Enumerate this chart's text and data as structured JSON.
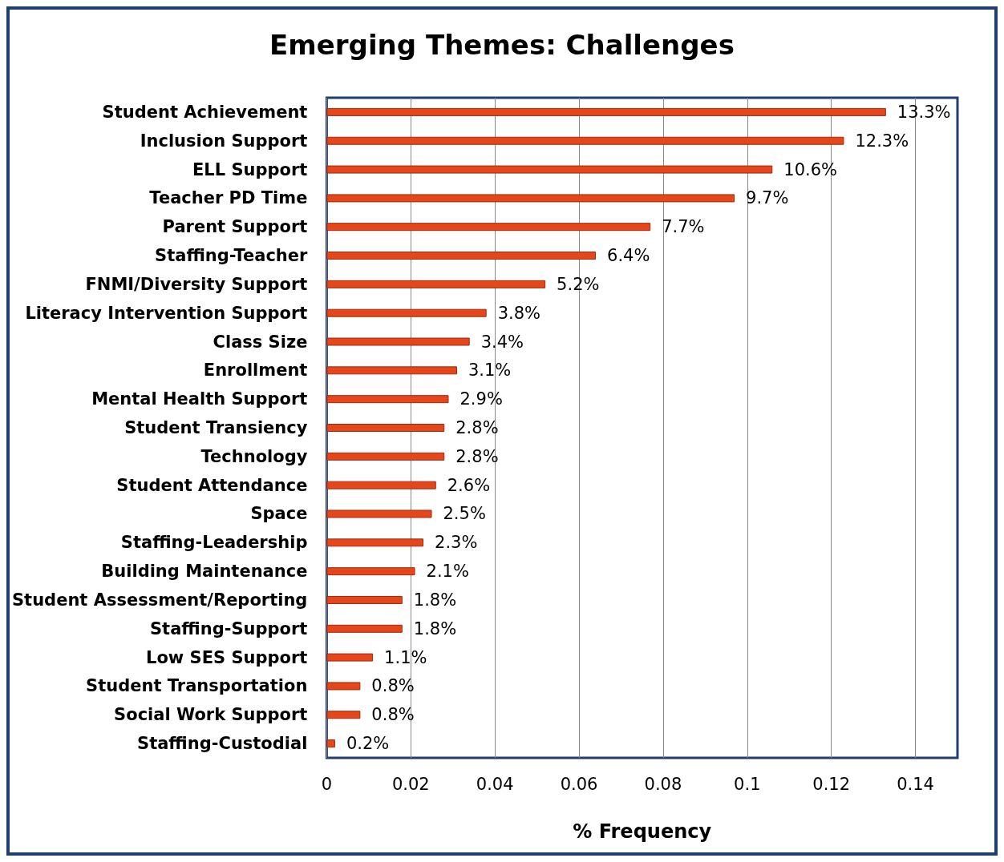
{
  "chart_data": {
    "type": "bar",
    "orientation": "horizontal",
    "title": "Emerging Themes: Challenges",
    "xlabel": "% Frequency",
    "categories": [
      "Student Achievement",
      "Inclusion Support",
      "ELL Support",
      "Teacher PD Time",
      "Parent Support",
      "Staffing-Teacher",
      "FNMI/Diversity Support",
      "Literacy Intervention Support",
      "Class Size",
      "Enrollment",
      "Mental Health Support",
      "Student Transiency",
      "Technology",
      "Student Attendance",
      "Space",
      "Staffing-Leadership",
      "Building Maintenance",
      "Student Assessment/Reporting",
      "Staffing-Support",
      "Low SES Support",
      "Student Transportation",
      "Social Work Support",
      "Staffing-Custodial"
    ],
    "values": [
      0.133,
      0.123,
      0.106,
      0.097,
      0.077,
      0.064,
      0.052,
      0.038,
      0.034,
      0.031,
      0.029,
      0.028,
      0.028,
      0.026,
      0.025,
      0.023,
      0.021,
      0.018,
      0.018,
      0.011,
      0.008,
      0.008,
      0.002
    ],
    "value_labels": [
      "13.3%",
      "12.3%",
      "10.6%",
      "9.7%",
      "7.7%",
      "6.4%",
      "5.2%",
      "3.8%",
      "3.4%",
      "3.1%",
      "2.9%",
      "2.8%",
      "2.8%",
      "2.6%",
      "2.5%",
      "2.3%",
      "2.1%",
      "1.8%",
      "1.8%",
      "1.1%",
      "0.8%",
      "0.8%",
      "0.2%"
    ],
    "color": "#e5461c",
    "xlim": [
      0,
      0.15
    ],
    "xticks": [
      0,
      0.02,
      0.04,
      0.06,
      0.08,
      0.1,
      0.12,
      0.14
    ],
    "grid": "x"
  }
}
